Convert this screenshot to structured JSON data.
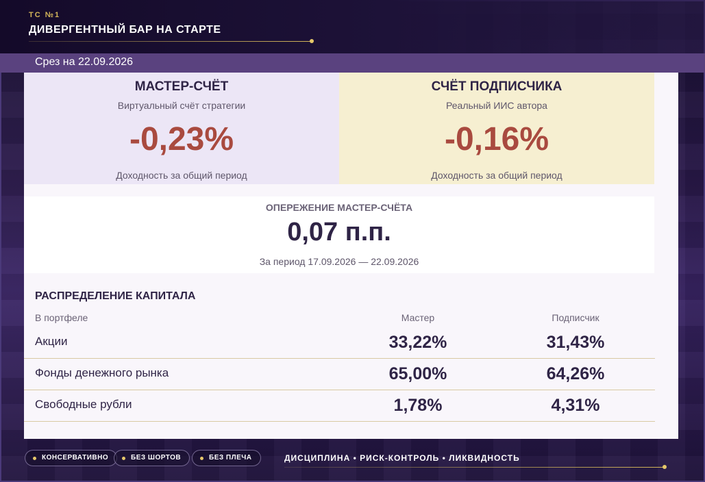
{
  "header": {
    "kicker": "ТС №1",
    "title": "ДИВЕРГЕНТНЫЙ БАР НА СТАРТЕ"
  },
  "snapshot_label": "Срез на 22.09.2026",
  "master": {
    "name": "МАСТЕР-СЧЁТ",
    "description": "Виртуальный счёт стратегии",
    "return_value": "-0,23%",
    "footnote": "Доходность за общий период"
  },
  "subscriber": {
    "name": "СЧЁТ ПОДПИСЧИКА",
    "description": "Реальный ИИС автора",
    "return_value": "-0,16%",
    "footnote": "Доходность за общий период"
  },
  "lead": {
    "label": "ОПЕРЕЖЕНИЕ МАСТЕР-СЧЁТА",
    "value": "0,07 п.п.",
    "period": "За период 17.09.2026 — 22.09.2026"
  },
  "allocation": {
    "title": "РАСПРЕДЕЛЕНИЕ КАПИТАЛА",
    "columns": [
      "В портфеле",
      "Мастер",
      "Подписчик"
    ],
    "rows": [
      {
        "label": "Акции",
        "master": "33,22%",
        "subscriber": "31,43%"
      },
      {
        "label": "Фонды денежного рынка",
        "master": "65,00%",
        "subscriber": "64,26%"
      },
      {
        "label": "Свободные рубли",
        "master": "1,78%",
        "subscriber": "4,31%"
      }
    ]
  },
  "footer": {
    "pills": [
      "КОНСЕРВАТИВНО",
      "БЕЗ ШОРТОВ",
      "БЕЗ ПЛЕЧА"
    ],
    "motto": "ДИСЦИПЛИНА • РИСК-КОНТРОЛЬ • ЛИКВИДНОСТЬ"
  },
  "colors": {
    "accent_gold": "#d4b65a",
    "negative_return": "#a94a3f",
    "master_card_bg": "#ece6f6",
    "subscriber_card_bg": "#f6efd1",
    "datebar_bg": "#5a427f"
  }
}
